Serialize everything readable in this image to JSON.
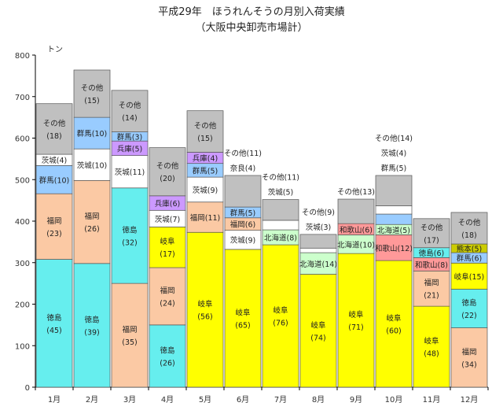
{
  "chart_data": {
    "type": "bar",
    "stacked": true,
    "title": "平成29年　ほうれんそうの月別入荷実績",
    "subtitle": "（大阪中央卸売市場計）",
    "ylabel": "トン",
    "ylim": [
      0,
      800
    ],
    "yticks": [
      "0",
      "100",
      "200",
      "300",
      "400",
      "500",
      "600",
      "700",
      "800"
    ],
    "grid": false,
    "categories": [
      "1月",
      "2月",
      "3月",
      "4月",
      "5月",
      "6月",
      "7月",
      "8月",
      "9月",
      "10月",
      "11月",
      "12月"
    ],
    "colors": {
      "徳島": "#66eeee",
      "福岡": "#fbc9a4",
      "岐阜": "#ffff00",
      "兵庫": "#cc99ff",
      "茨城": "#ffffff",
      "群馬": "#99ccff",
      "北海道": "#ccffcc",
      "和歌山": "#ff9999",
      "熊本": "#cccc00",
      "奈良": "#e8e8e8",
      "その他": "#c0c0c0"
    },
    "months": [
      {
        "segments": [
          {
            "name": "徳島",
            "value": 308,
            "label": [
              "徳島",
              "(45)"
            ]
          },
          {
            "name": "福岡",
            "value": 158,
            "label": [
              "福岡",
              "(23)"
            ]
          },
          {
            "name": "群馬",
            "value": 68,
            "label": [
              "群馬(10)"
            ]
          },
          {
            "name": "茨城",
            "value": 27,
            "label": [
              "茨城(4)"
            ]
          },
          {
            "name": "その他",
            "value": 122,
            "label": [
              "その他",
              "(18)"
            ]
          }
        ]
      },
      {
        "segments": [
          {
            "name": "徳島",
            "value": 298,
            "label": [
              "徳島",
              "(39)"
            ]
          },
          {
            "name": "福岡",
            "value": 200,
            "label": [
              "福岡",
              "(26)"
            ]
          },
          {
            "name": "茨城",
            "value": 76,
            "label": [
              "茨城(10)"
            ]
          },
          {
            "name": "群馬",
            "value": 76,
            "label": [
              "群馬(10)"
            ]
          },
          {
            "name": "その他",
            "value": 114,
            "label": [
              "その他",
              "(15)"
            ]
          }
        ]
      },
      {
        "segments": [
          {
            "name": "福岡",
            "value": 250,
            "label": [
              "福岡",
              "(35)"
            ]
          },
          {
            "name": "徳島",
            "value": 230,
            "label": [
              "徳島",
              "(32)"
            ]
          },
          {
            "name": "茨城",
            "value": 78,
            "label": [
              "茨城(11)"
            ]
          },
          {
            "name": "兵庫",
            "value": 35,
            "label": [
              "兵庫(5)"
            ]
          },
          {
            "name": "群馬",
            "value": 22,
            "label": [
              "群馬(3)"
            ]
          },
          {
            "name": "その他",
            "value": 100,
            "label": [
              "その他",
              "(14)"
            ]
          }
        ]
      },
      {
        "segments": [
          {
            "name": "徳島",
            "value": 150,
            "label": [
              "徳島",
              "(26)"
            ]
          },
          {
            "name": "福岡",
            "value": 138,
            "label": [
              "福岡",
              "(24)"
            ]
          },
          {
            "name": "岐阜",
            "value": 98,
            "label": [
              "岐阜",
              "(17)"
            ]
          },
          {
            "name": "茨城",
            "value": 40,
            "label": [
              "茨城(7)"
            ]
          },
          {
            "name": "兵庫",
            "value": 35,
            "label": [
              "兵庫(6)"
            ]
          },
          {
            "name": "その他",
            "value": 116,
            "label": [
              "その他",
              "(20)"
            ]
          }
        ]
      },
      {
        "segments": [
          {
            "name": "岐阜",
            "value": 373,
            "label": [
              "岐阜",
              "(56)"
            ]
          },
          {
            "name": "福岡",
            "value": 73,
            "label": [
              "福岡(11)"
            ]
          },
          {
            "name": "茨城",
            "value": 60,
            "label": [
              "茨城(9)"
            ]
          },
          {
            "name": "群馬",
            "value": 33,
            "label": [
              "群馬(5)"
            ]
          },
          {
            "name": "兵庫",
            "value": 27,
            "label": [
              "兵庫(4)"
            ]
          },
          {
            "name": "その他",
            "value": 100,
            "label": [
              "その他",
              "(15)"
            ]
          }
        ]
      },
      {
        "segments": [
          {
            "name": "岐阜",
            "value": 332,
            "label": [
              "岐阜",
              "(65)"
            ]
          },
          {
            "name": "茨城",
            "value": 46,
            "label": [
              "茨城(9)"
            ]
          },
          {
            "name": "福岡",
            "value": 30,
            "label": [
              "福岡(6)"
            ]
          },
          {
            "name": "群馬",
            "value": 26,
            "label": [
              "群馬(5)"
            ]
          },
          {
            "name": "その他",
            "value": 76,
            "label": []
          }
        ]
      },
      {
        "segments": [
          {
            "name": "岐阜",
            "value": 343,
            "label": [
              "岐阜",
              "(76)"
            ]
          },
          {
            "name": "北海道",
            "value": 36,
            "label": [
              "北海道(8)"
            ]
          },
          {
            "name": "茨城",
            "value": 23,
            "label": []
          },
          {
            "name": "その他",
            "value": 50,
            "label": []
          }
        ]
      },
      {
        "segments": [
          {
            "name": "岐阜",
            "value": 272,
            "label": [
              "岐阜",
              "(74)"
            ]
          },
          {
            "name": "北海道",
            "value": 52,
            "label": [
              "北海道(14)"
            ]
          },
          {
            "name": "茨城",
            "value": 11,
            "label": []
          },
          {
            "name": "その他",
            "value": 33,
            "label": []
          }
        ]
      },
      {
        "segments": [
          {
            "name": "岐阜",
            "value": 322,
            "label": [
              "岐阜",
              "(71)"
            ]
          },
          {
            "name": "北海道",
            "value": 45,
            "label": [
              "北海道(10)"
            ]
          },
          {
            "name": "和歌山",
            "value": 27,
            "label": [
              "和歌山(6)"
            ]
          },
          {
            "name": "その他",
            "value": 59,
            "label": []
          }
        ]
      },
      {
        "segments": [
          {
            "name": "岐阜",
            "value": 305,
            "label": [
              "岐阜",
              "(60)"
            ]
          },
          {
            "name": "和歌山",
            "value": 62,
            "label": [
              "和歌山(12)"
            ]
          },
          {
            "name": "北海道",
            "value": 25,
            "label": [
              "北海道(5)"
            ]
          },
          {
            "name": "群馬",
            "value": 25,
            "label": []
          },
          {
            "name": "茨城",
            "value": 20,
            "label": []
          },
          {
            "name": "その他",
            "value": 73,
            "label": []
          }
        ]
      },
      {
        "segments": [
          {
            "name": "岐阜",
            "value": 195,
            "label": [
              "岐阜",
              "(48)"
            ]
          },
          {
            "name": "福岡",
            "value": 85,
            "label": [
              "福岡",
              "(21)"
            ]
          },
          {
            "name": "和歌山",
            "value": 32,
            "label": [
              "和歌山(8)"
            ]
          },
          {
            "name": "徳島",
            "value": 24,
            "label": [
              "徳島(6)"
            ]
          },
          {
            "name": "その他",
            "value": 70,
            "label": [
              "その他",
              "(17)"
            ]
          }
        ]
      },
      {
        "segments": [
          {
            "name": "福岡",
            "value": 143,
            "label": [
              "福岡",
              "(34)"
            ]
          },
          {
            "name": "徳島",
            "value": 93,
            "label": [
              "徳島",
              "(22)"
            ]
          },
          {
            "name": "岐阜",
            "value": 63,
            "label": [
              "岐阜(15)"
            ]
          },
          {
            "name": "群馬",
            "value": 25,
            "label": [
              "群馬(6)"
            ]
          },
          {
            "name": "熊本",
            "value": 21,
            "label": [
              "熊本(5)"
            ]
          },
          {
            "name": "その他",
            "value": 76,
            "label": [
              "その他",
              "(18)"
            ]
          }
        ]
      }
    ],
    "annotations": [
      {
        "month": "6月",
        "lines": [
          "その他(11)",
          "奈良(4)"
        ]
      },
      {
        "month": "7月",
        "lines": [
          "その他(11)",
          "茨城(5)"
        ]
      },
      {
        "month": "8月",
        "lines": [
          "その他(9)",
          "茨城(3)"
        ]
      },
      {
        "month": "9月",
        "lines": [
          "その他(13)"
        ]
      },
      {
        "month": "10月",
        "lines": [
          "その他(14)",
          "茨城(4)",
          "群馬(5)"
        ]
      }
    ]
  }
}
